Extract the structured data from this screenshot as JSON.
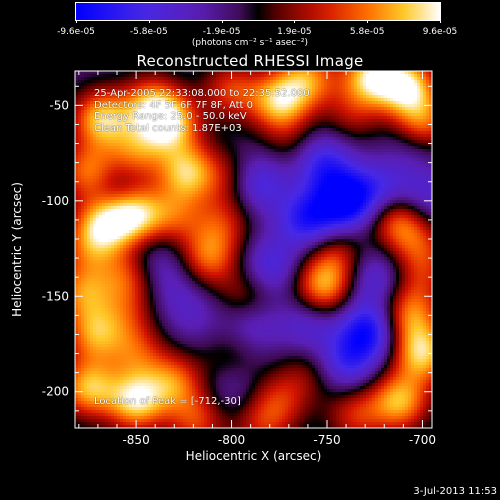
{
  "colorbar": {
    "tick_labels": [
      "-9.6e-05",
      "-5.8e-05",
      "-1.9e-05",
      "1.9e-05",
      "5.8e-05",
      "9.6e-05"
    ],
    "unit_label": "(photons cm⁻² s⁻¹ asec⁻²)"
  },
  "chart_data": {
    "type": "heatmap",
    "title": "Reconstructed RHESSI Image",
    "xlabel": "Heliocentric X (arcsec)",
    "ylabel": "Heliocentric Y (arcsec)",
    "xlim": [
      -882,
      -695
    ],
    "ylim": [
      -219,
      -32
    ],
    "x_ticks": [
      -850,
      -800,
      -750,
      -700
    ],
    "y_ticks": [
      -50,
      -100,
      -150,
      -200
    ],
    "x_tick_labels": [
      "-850",
      "-800",
      "-750",
      "-700"
    ],
    "y_tick_labels": [
      "-50",
      "-100",
      "-150",
      "-200"
    ],
    "zlim": [
      -9.6e-05,
      9.6e-05
    ],
    "colormap": "blue-purple-red-yellow-white",
    "peak": [
      -712,
      -30
    ],
    "blobs": [
      {
        "x": -868,
        "y": -57,
        "v": 9e-05
      },
      {
        "x": -842,
        "y": -50,
        "v": 7.5e-05
      },
      {
        "x": -832,
        "y": -60,
        "v": 8.5e-05
      },
      {
        "x": -800,
        "y": -42,
        "v": 5.5e-05
      },
      {
        "x": -775,
        "y": -48,
        "v": 8.8e-05
      },
      {
        "x": -760,
        "y": -36,
        "v": 7e-05
      },
      {
        "x": -727,
        "y": -35,
        "v": 9.2e-05
      },
      {
        "x": -708,
        "y": -40,
        "v": 9.6e-05
      },
      {
        "x": -700,
        "y": -60,
        "v": 7.5e-05
      },
      {
        "x": -875,
        "y": -85,
        "v": 7e-05
      },
      {
        "x": -850,
        "y": -75,
        "v": 6e-05
      },
      {
        "x": -823,
        "y": -85,
        "v": 8.5e-05
      },
      {
        "x": -800,
        "y": -88,
        "v": 4e-05
      },
      {
        "x": -867,
        "y": -112,
        "v": 8e-05
      },
      {
        "x": -851,
        "y": -107,
        "v": 9.6e-05
      },
      {
        "x": -830,
        "y": -108,
        "v": 5e-05
      },
      {
        "x": -812,
        "y": -130,
        "v": 6.5e-05
      },
      {
        "x": -805,
        "y": -112,
        "v": 4.5e-05
      },
      {
        "x": -878,
        "y": -148,
        "v": 6.5e-05
      },
      {
        "x": -855,
        "y": -140,
        "v": 5.5e-05
      },
      {
        "x": -872,
        "y": -170,
        "v": 7e-05
      },
      {
        "x": -875,
        "y": -198,
        "v": 8.5e-05
      },
      {
        "x": -850,
        "y": -205,
        "v": 9.5e-05
      },
      {
        "x": -830,
        "y": -195,
        "v": 6.5e-05
      },
      {
        "x": -818,
        "y": -215,
        "v": 5.5e-05
      },
      {
        "x": -850,
        "y": -180,
        "v": 5e-05
      },
      {
        "x": -792,
        "y": -150,
        "v": 4e-05
      },
      {
        "x": -752,
        "y": -145,
        "v": 8e-05
      },
      {
        "x": -745,
        "y": -128,
        "v": 4.5e-05
      },
      {
        "x": -712,
        "y": -110,
        "v": 7.5e-05
      },
      {
        "x": -701,
        "y": -124,
        "v": 4e-05
      },
      {
        "x": -707,
        "y": -160,
        "v": 7e-05
      },
      {
        "x": -700,
        "y": -180,
        "v": 9e-05
      },
      {
        "x": -712,
        "y": -205,
        "v": 8.5e-05
      },
      {
        "x": -735,
        "y": -212,
        "v": 5e-05
      },
      {
        "x": -760,
        "y": -190,
        "v": 3e-05
      },
      {
        "x": -775,
        "y": -205,
        "v": 4.5e-05
      },
      {
        "x": -800,
        "y": -180,
        "v": 2.5e-05
      },
      {
        "x": -700,
        "y": -140,
        "v": 3.5e-05
      },
      {
        "x": -770,
        "y": -70,
        "v": 2.5e-05
      },
      {
        "x": -737,
        "y": -55,
        "v": 3.5e-05
      },
      {
        "x": -875,
        "y": -125,
        "v": 4.5e-05
      },
      {
        "x": -855,
        "y": -160,
        "v": 3.5e-05
      },
      {
        "x": -785,
        "y": -218,
        "v": 4e-05
      },
      {
        "x": -718,
        "y": -85,
        "v": 1.5e-05
      },
      {
        "x": -760,
        "y": -165,
        "v": -3.5e-05
      },
      {
        "x": -780,
        "y": -135,
        "v": -4.5e-05
      },
      {
        "x": -787,
        "y": -90,
        "v": -5.5e-05
      },
      {
        "x": -740,
        "y": -100,
        "v": -9e-05
      },
      {
        "x": -720,
        "y": -92,
        "v": -5e-05
      },
      {
        "x": -760,
        "y": -110,
        "v": -6.5e-05
      },
      {
        "x": -728,
        "y": -168,
        "v": -7.5e-05
      },
      {
        "x": -740,
        "y": -185,
        "v": -5e-05
      },
      {
        "x": -700,
        "y": -100,
        "v": -4e-05
      },
      {
        "x": -725,
        "y": -140,
        "v": -4e-05
      },
      {
        "x": -790,
        "y": -165,
        "v": -3.5e-05
      },
      {
        "x": -840,
        "y": -130,
        "v": -2.5e-05
      },
      {
        "x": -860,
        "y": -95,
        "v": -3e-05
      },
      {
        "x": -820,
        "y": -160,
        "v": -2e-05
      },
      {
        "x": -705,
        "y": -70,
        "v": -3e-05
      },
      {
        "x": -752,
        "y": -80,
        "v": -5.5e-05
      },
      {
        "x": -800,
        "y": -200,
        "v": -2e-05
      },
      {
        "x": -830,
        "y": -145,
        "v": -2e-05
      }
    ]
  },
  "overlay": {
    "line1": "25-Apr-2005 22:33:08.000 to 22:35:52.000",
    "line2": "Detectors: 4F 5F 6F 7F 8F, Att 0",
    "line3": "Energy Range: 25.0 - 50.0 keV",
    "line4": "Clean     Total counts: 1.87E+03",
    "peak_text": "Location of Peak = [-712,-30]"
  },
  "footer": {
    "date": "3-Jul-2013 11:53"
  }
}
